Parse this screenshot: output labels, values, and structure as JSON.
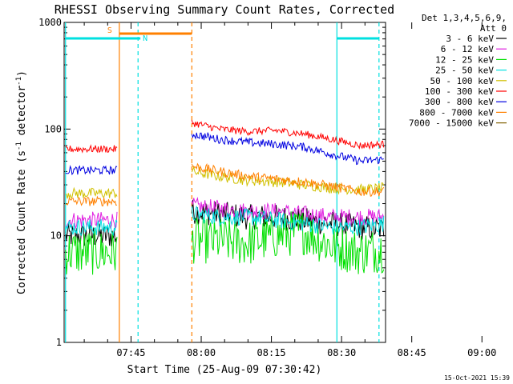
{
  "chart_data": {
    "type": "line",
    "title": "RHESSI Observing Summary Count Rates, Corrected",
    "xlabel": "Start Time (25-Aug-09 07:30:42)",
    "ylabel_main": "Corrected Count Rate (s",
    "ylabel_sup1": "-1",
    "ylabel_mid": " detector",
    "ylabel_sup2": "-1",
    "ylabel_end": ")",
    "yscale": "log",
    "ylim": [
      1,
      1000
    ],
    "y_ticks": [
      {
        "value": 1,
        "label": "1"
      },
      {
        "value": 10,
        "label": "10"
      },
      {
        "value": 100,
        "label": "100"
      },
      {
        "value": 1000,
        "label": "1000"
      }
    ],
    "xlim_min": [
      30.7,
      99.4
    ],
    "x_ticks": [
      {
        "value": 45,
        "label": "07:45"
      },
      {
        "value": 60,
        "label": "08:00"
      },
      {
        "value": 75,
        "label": "08:15"
      },
      {
        "value": 90,
        "label": "08:30"
      },
      {
        "value": 105,
        "label": "08:45"
      },
      {
        "value": 120,
        "label": "09:00"
      }
    ],
    "legend_header": [
      "Det 1,3,4,5,6,9,",
      "Att 0"
    ],
    "legend_placement": "right",
    "series": [
      {
        "name": "3 - 6 keV",
        "color": "#000000",
        "segments": [
          {
            "x": [
              31,
              42
            ],
            "y": [
              10,
              10
            ]
          },
          {
            "x": [
              58,
              64,
              70,
              76,
              82,
              88,
              94,
              99
            ],
            "y": [
              17,
              16,
              15,
              15,
              14,
              13,
              12,
              11.5
            ]
          }
        ]
      },
      {
        "name": "6 - 12 keV",
        "color": "#e020e0",
        "segments": [
          {
            "x": [
              31,
              42
            ],
            "y": [
              14,
              14
            ]
          },
          {
            "x": [
              58,
              64,
              70,
              76,
              82,
              88,
              94,
              99
            ],
            "y": [
              19,
              18,
              17,
              17,
              16,
              15,
              15,
              15
            ]
          }
        ]
      },
      {
        "name": "12 - 25 keV",
        "color": "#00e000",
        "segments": [
          {
            "x": [
              31,
              42
            ],
            "y": [
              7,
              7
            ]
          },
          {
            "x": [
              58,
              64,
              70,
              76,
              82,
              88,
              94,
              99
            ],
            "y": [
              9,
              9,
              8.5,
              10,
              11,
              8,
              7,
              7.5
            ]
          }
        ]
      },
      {
        "name": "25 - 50 keV",
        "color": "#00e0e0",
        "segments": [
          {
            "x": [
              31,
              42
            ],
            "y": [
              12,
              12
            ]
          },
          {
            "x": [
              58,
              64,
              70,
              76,
              82,
              88,
              94,
              99
            ],
            "y": [
              16,
              15,
              15,
              14,
              13,
              12,
              12,
              13
            ]
          }
        ]
      },
      {
        "name": "50 - 100 keV",
        "color": "#d0c000",
        "segments": [
          {
            "x": [
              31,
              42
            ],
            "y": [
              25,
              25
            ]
          },
          {
            "x": [
              58,
              64,
              70,
              76,
              82,
              88,
              94,
              99
            ],
            "y": [
              40,
              36,
              33,
              32,
              30,
              28,
              27,
              28
            ]
          }
        ]
      },
      {
        "name": "100 - 300 keV",
        "color": "#ff0000",
        "segments": [
          {
            "x": [
              31,
              42
            ],
            "y": [
              65,
              65
            ]
          },
          {
            "x": [
              58,
              64,
              70,
              76,
              82,
              88,
              94,
              99
            ],
            "y": [
              115,
              100,
              95,
              97,
              90,
              80,
              70,
              72
            ]
          }
        ]
      },
      {
        "name": "300 - 800 keV",
        "color": "#0000e0",
        "segments": [
          {
            "x": [
              31,
              42
            ],
            "y": [
              41,
              41
            ]
          },
          {
            "x": [
              58,
              64,
              70,
              76,
              82,
              88,
              94,
              99
            ],
            "y": [
              90,
              80,
              75,
              72,
              68,
              58,
              50,
              52
            ]
          }
        ]
      },
      {
        "name": "800 - 7000 keV",
        "color": "#ff8000",
        "segments": [
          {
            "x": [
              31,
              42
            ],
            "y": [
              21,
              21
            ]
          },
          {
            "x": [
              58,
              64,
              70,
              76,
              82,
              88,
              94,
              99
            ],
            "y": [
              45,
              40,
              36,
              34,
              32,
              29,
              26,
              26
            ]
          }
        ]
      },
      {
        "name": "7000 - 15000 keV",
        "color": "#806000",
        "segments": []
      }
    ],
    "flags": [
      {
        "label": "S",
        "color": "#ff8000",
        "x_start": 42.5,
        "x_end": 58
      },
      {
        "label": "N",
        "color": "#00e0e0",
        "x_start": 31,
        "x_end": 47
      },
      {
        "label": "",
        "color": "#00e0e0",
        "x_start": 89,
        "x_end": 98
      }
    ],
    "vlines": [
      {
        "x": 31,
        "color": "#00e0e0",
        "dash": false
      },
      {
        "x": 42.5,
        "color": "#ff8000",
        "dash": false
      },
      {
        "x": 46.5,
        "color": "#00e0e0",
        "dash": true
      },
      {
        "x": 58,
        "color": "#ff8000",
        "dash": true
      },
      {
        "x": 89,
        "color": "#00e0e0",
        "dash": false
      },
      {
        "x": 98,
        "color": "#00e0e0",
        "dash": true
      }
    ]
  },
  "footer": {
    "timestamp": "15-Oct-2021 15:39"
  }
}
